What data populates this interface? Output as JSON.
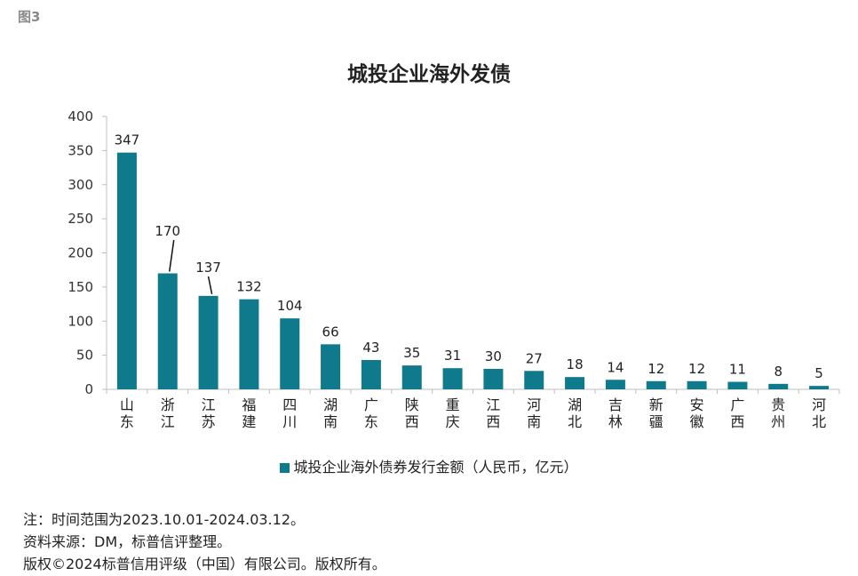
{
  "figure_label": "图3",
  "colors": {
    "bar": "#0e7a8c",
    "axis": "#bfbfbf",
    "text": "#222222"
  },
  "chart_data": {
    "type": "bar",
    "title": "城投企业海外发债",
    "categories": [
      "山东",
      "浙江",
      "江苏",
      "福建",
      "四川",
      "湖南",
      "广东",
      "陕西",
      "重庆",
      "江西",
      "河南",
      "湖北",
      "吉林",
      "新疆",
      "安徽",
      "广西",
      "贵州",
      "河北"
    ],
    "series": [
      {
        "name": "城投企业海外债券发行金额（人民币，亿元）",
        "values": [
          347,
          170,
          137,
          132,
          104,
          66,
          43,
          35,
          31,
          30,
          27,
          18,
          14,
          12,
          12,
          11,
          8,
          5
        ]
      }
    ],
    "ylim": [
      0,
      400
    ],
    "yticks": [
      0,
      50,
      100,
      150,
      200,
      250,
      300,
      350,
      400
    ],
    "grid": false,
    "legend_position": "bottom"
  },
  "notes": [
    "注：时间范围为2023.10.01-2024.03.12。",
    "资料来源：DM，标普信评整理。",
    "版权©2024标普信用评级（中国）有限公司。版权所有。"
  ]
}
